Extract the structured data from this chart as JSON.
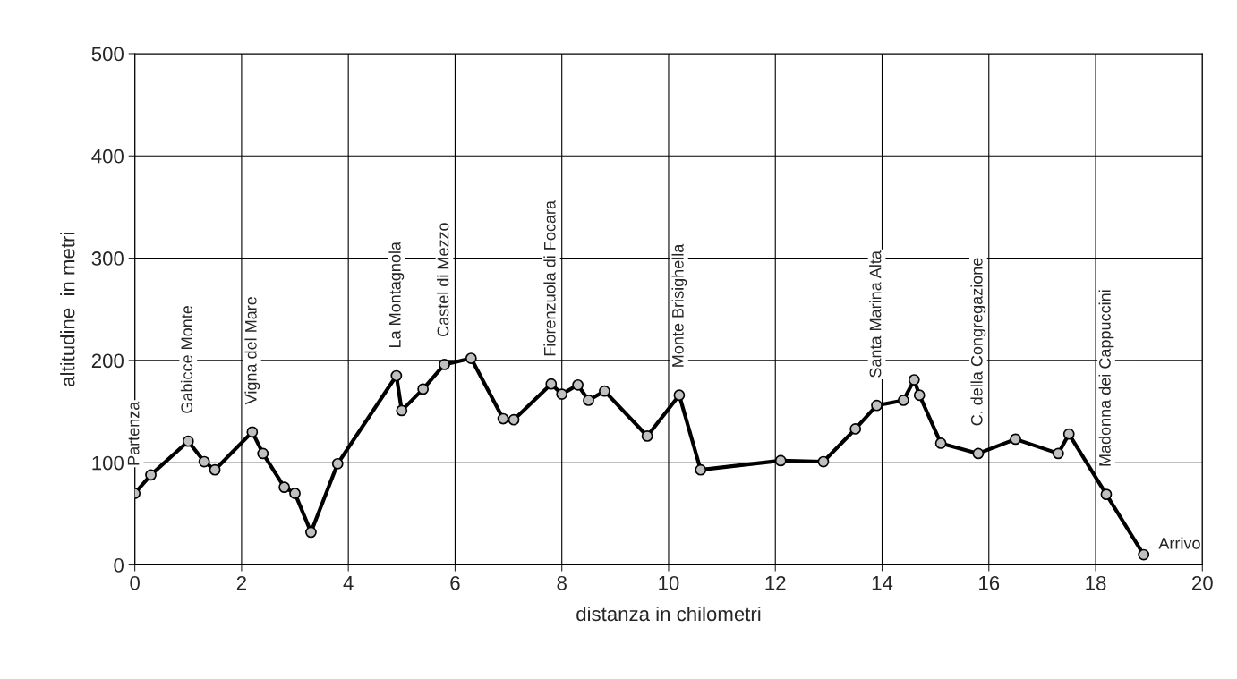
{
  "chart_data": {
    "type": "line",
    "xlabel": "distanza in chilometri",
    "ylabel": "altitudine  in metri",
    "xlim": [
      0,
      20
    ],
    "xticks": [
      0,
      2,
      4,
      6,
      8,
      10,
      12,
      14,
      16,
      18,
      20
    ],
    "ylim": [
      0,
      500
    ],
    "yticks": [
      0,
      100,
      200,
      300,
      400,
      500
    ],
    "grid": true,
    "marker": "circle",
    "line_style": "solid",
    "series": [
      {
        "color": "#000000",
        "x": [
          0,
          0.3,
          1.0,
          1.3,
          1.5,
          2.2,
          2.4,
          2.8,
          3.0,
          3.3,
          3.8,
          4.9,
          5.0,
          5.4,
          5.8,
          6.3,
          6.9,
          7.1,
          7.8,
          8.0,
          8.3,
          8.5,
          8.8,
          9.6,
          10.2,
          10.6,
          12.1,
          12.9,
          13.5,
          13.9,
          14.4,
          14.6,
          14.7,
          15.1,
          15.8,
          16.5,
          17.3,
          17.5,
          18.2,
          18.9
        ],
        "values": [
          70,
          88,
          121,
          101,
          93,
          130,
          109,
          76,
          70,
          32,
          99,
          185,
          151,
          172,
          196,
          202,
          143,
          142,
          177,
          167,
          176,
          161,
          170,
          126,
          166,
          93,
          102,
          101,
          133,
          156,
          161,
          181,
          166,
          119,
          109,
          123,
          109,
          128,
          69,
          10
        ]
      }
    ],
    "annotations": [
      {
        "text": "Partenza",
        "x": 0,
        "y": 70
      },
      {
        "text": "Gabicce Monte",
        "x": 1.0,
        "y": 121
      },
      {
        "text": "Vigna del Mare",
        "x": 2.2,
        "y": 130
      },
      {
        "text": "La Montagnola",
        "x": 4.9,
        "y": 185
      },
      {
        "text": "Castel di Mezzo",
        "x": 5.8,
        "y": 196
      },
      {
        "text": "Fiorenzuola di Focara",
        "x": 7.8,
        "y": 177
      },
      {
        "text": "Monte Brisighella",
        "x": 10.2,
        "y": 166
      },
      {
        "text": "Santa Marina Alta",
        "x": 13.9,
        "y": 156
      },
      {
        "text": "C. della Congregazione",
        "x": 15.8,
        "y": 109
      },
      {
        "text": "Madonna dei Cappuccini",
        "x": 18.2,
        "y": 69
      },
      {
        "text": "Arrivo",
        "x": 18.9,
        "y": 10
      }
    ]
  }
}
